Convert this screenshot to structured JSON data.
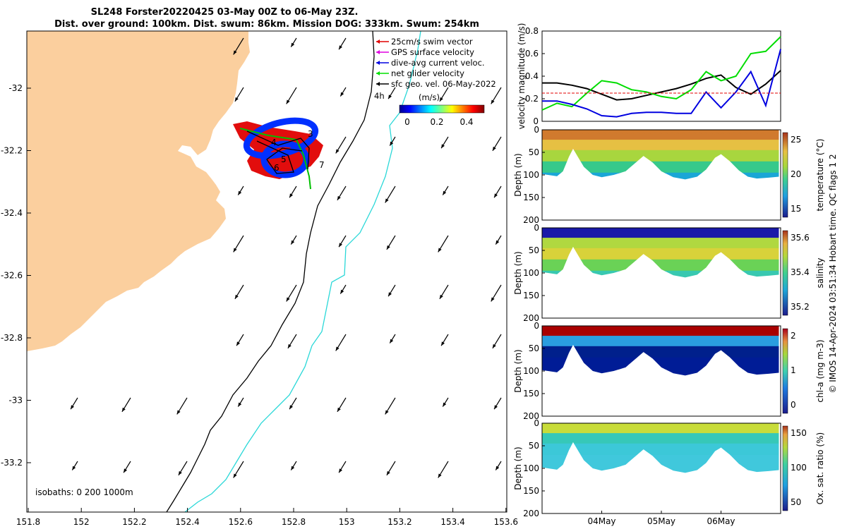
{
  "title": {
    "line1": "SL248 Forster20220425 03-May 00Z to 06-May 23Z.",
    "line2": "Dist. over ground: 100km. Dist. swum: 86km. Mission DOG: 333km. Swum: 254km"
  },
  "side_note": "© IMOS 14-Apr-2024 03:51:34 Hobart time. QC flags 1  2",
  "map": {
    "lon_ticks": [
      "151.8",
      "152",
      "152.2",
      "152.4",
      "152.6",
      "152.8",
      "153",
      "153.2",
      "153.4",
      "153.6"
    ],
    "lat_ticks": [
      "-32",
      "-32.2",
      "-32.4",
      "-32.6",
      "-32.8",
      "-33",
      "-33.2"
    ],
    "legend": [
      {
        "label": "25cm/s swim vector",
        "color": "#e00000"
      },
      {
        "label": "GPS surface velocity",
        "color": "#e000e0"
      },
      {
        "label": "dive-avg current veloc.",
        "color": "#0000e0"
      },
      {
        "label": "net glider velocity",
        "color": "#00e000"
      },
      {
        "label": "sfc geo. vel. 06-May-2022",
        "color": "#000000"
      }
    ],
    "time_label": "4h",
    "colorbar": {
      "label": "(m/s)",
      "ticks": [
        "0",
        "0.2",
        "0.4"
      ]
    },
    "isobaths": "isobaths: 0   200  1000m",
    "track_marks": [
      "3",
      "4",
      "5",
      "6",
      "7"
    ],
    "land_color": "#fbcf9e"
  },
  "chart_data": [
    {
      "type": "line",
      "ylabel": "velocity magnitude (m/s)",
      "ylim": [
        0,
        0.8
      ],
      "yticks": [
        "0",
        "0.2",
        "0.4",
        "0.6",
        "0.8"
      ],
      "x_days": [
        0,
        0.25,
        0.5,
        0.75,
        1,
        1.25,
        1.5,
        1.75,
        2,
        2.25,
        2.5,
        2.75,
        3,
        3.25,
        3.5,
        3.75,
        4
      ],
      "series": [
        {
          "color": "#000000",
          "values": [
            0.34,
            0.34,
            0.32,
            0.29,
            0.24,
            0.19,
            0.2,
            0.23,
            0.26,
            0.29,
            0.33,
            0.38,
            0.41,
            0.3,
            0.24,
            0.33,
            0.45
          ]
        },
        {
          "color": "#00dd00",
          "values": [
            0.1,
            0.16,
            0.13,
            0.25,
            0.36,
            0.34,
            0.28,
            0.26,
            0.22,
            0.2,
            0.28,
            0.44,
            0.36,
            0.4,
            0.6,
            0.62,
            0.75
          ]
        },
        {
          "color": "#0000e0",
          "values": [
            0.18,
            0.18,
            0.15,
            0.11,
            0.05,
            0.04,
            0.07,
            0.08,
            0.08,
            0.07,
            0.07,
            0.26,
            0.12,
            0.26,
            0.44,
            0.14,
            0.64
          ]
        },
        {
          "color": "#e00000",
          "values": [
            0.25,
            0.25,
            0.25,
            0.25,
            0.25,
            0.25,
            0.25,
            0.25,
            0.25,
            0.25,
            0.25,
            0.25,
            0.25,
            0.25,
            0.25,
            0.25,
            0.25
          ]
        }
      ]
    },
    {
      "type": "heatmap",
      "variable": "temperature",
      "clabel": "temperature (°C)",
      "ylabel": "Depth (m)",
      "yticks": [
        "0",
        "50",
        "100",
        "150",
        "200"
      ],
      "cticks": [
        "15",
        "20",
        "25"
      ],
      "colors": [
        "#d07a2e",
        "#e6c043",
        "#a8d63e",
        "#36c98b",
        "#1aa6d6"
      ]
    },
    {
      "type": "heatmap",
      "variable": "salinity",
      "clabel": "salinity",
      "ylabel": "Depth (m)",
      "yticks": [
        "0",
        "50",
        "100",
        "150",
        "200"
      ],
      "cticks": [
        "35.2",
        "35.4",
        "35.6"
      ],
      "colors": [
        "#1a1aa8",
        "#b0d840",
        "#d8d23a",
        "#6ad256",
        "#38c8b0"
      ]
    },
    {
      "type": "heatmap",
      "variable": "chl-a",
      "clabel": "chl-a (mg m-3)",
      "ylabel": "Depth (m)",
      "yticks": [
        "0",
        "50",
        "100",
        "150",
        "200"
      ],
      "cticks": [
        "0",
        "1",
        "2"
      ],
      "colors": [
        "#a80000",
        "#2a9ee0",
        "#00208c",
        "#001c96",
        "#001c96"
      ]
    },
    {
      "type": "heatmap",
      "variable": "oxygen",
      "clabel": "Ox. sat. ratio (%)",
      "ylabel": "Depth (m)",
      "yticks": [
        "0",
        "50",
        "100",
        "150",
        "200"
      ],
      "cticks": [
        "50",
        "100",
        "150"
      ],
      "xticks": [
        "04May",
        "05May",
        "06May"
      ],
      "colors": [
        "#c8dc3a",
        "#36c8b8",
        "#3cc8d8",
        "#40c8dc",
        "#40c8dc"
      ]
    }
  ]
}
